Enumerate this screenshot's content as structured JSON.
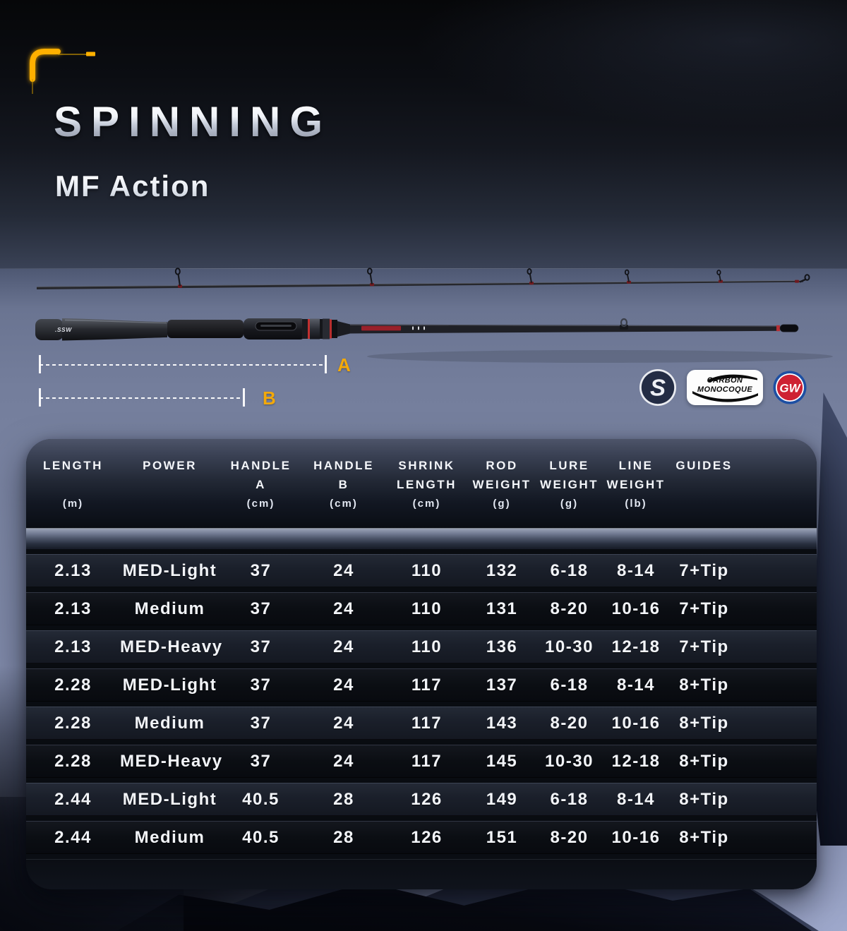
{
  "header": {
    "title": "SPINNING",
    "subtitle": "MF Action"
  },
  "rod_diagram": {
    "dim_a_label": "A",
    "dim_b_label": "B",
    "handle_brand_text": ".SSW"
  },
  "badges": {
    "s_logo_text": "S",
    "carbon_line1": "CARBON",
    "carbon_line2": "MONOCOQUE",
    "gw_logo_text": "GW"
  },
  "colors": {
    "accent_yellow": "#F3A90A",
    "badge_red": "#CE2133",
    "badge_blue": "#1D4FA3",
    "badge_navy": "#232C44",
    "row_light": "#1C212C",
    "row_dark": "#0B0E13",
    "table_text": "#F2F4F8"
  },
  "spec_table": {
    "headers": [
      {
        "line1": "LENGTH",
        "line2": "",
        "unit": "(m)"
      },
      {
        "line1": "POWER",
        "line2": "",
        "unit": ""
      },
      {
        "line1": "HANDLE",
        "line2": "A",
        "unit": "(cm)"
      },
      {
        "line1": "HANDLE",
        "line2": "B",
        "unit": "(cm)"
      },
      {
        "line1": "SHRINK",
        "line2": "LENGTH",
        "unit": "(cm)"
      },
      {
        "line1": "ROD",
        "line2": "WEIGHT",
        "unit": "(g)"
      },
      {
        "line1": "LURE",
        "line2": "WEIGHT",
        "unit": "(g)"
      },
      {
        "line1": "LINE",
        "line2": "WEIGHT",
        "unit": "(lb)"
      },
      {
        "line1": "GUIDES",
        "line2": "",
        "unit": ""
      }
    ],
    "rows": [
      [
        "2.13",
        "MED-Light",
        "37",
        "24",
        "110",
        "132",
        "6-18",
        "8-14",
        "7+Tip"
      ],
      [
        "2.13",
        "Medium",
        "37",
        "24",
        "110",
        "131",
        "8-20",
        "10-16",
        "7+Tip"
      ],
      [
        "2.13",
        "MED-Heavy",
        "37",
        "24",
        "110",
        "136",
        "10-30",
        "12-18",
        "7+Tip"
      ],
      [
        "2.28",
        "MED-Light",
        "37",
        "24",
        "117",
        "137",
        "6-18",
        "8-14",
        "8+Tip"
      ],
      [
        "2.28",
        "Medium",
        "37",
        "24",
        "117",
        "143",
        "8-20",
        "10-16",
        "8+Tip"
      ],
      [
        "2.28",
        "MED-Heavy",
        "37",
        "24",
        "117",
        "145",
        "10-30",
        "12-18",
        "8+Tip"
      ],
      [
        "2.44",
        "MED-Light",
        "40.5",
        "28",
        "126",
        "149",
        "6-18",
        "8-14",
        "8+Tip"
      ],
      [
        "2.44",
        "Medium",
        "40.5",
        "28",
        "126",
        "151",
        "8-20",
        "10-16",
        "8+Tip"
      ]
    ]
  }
}
